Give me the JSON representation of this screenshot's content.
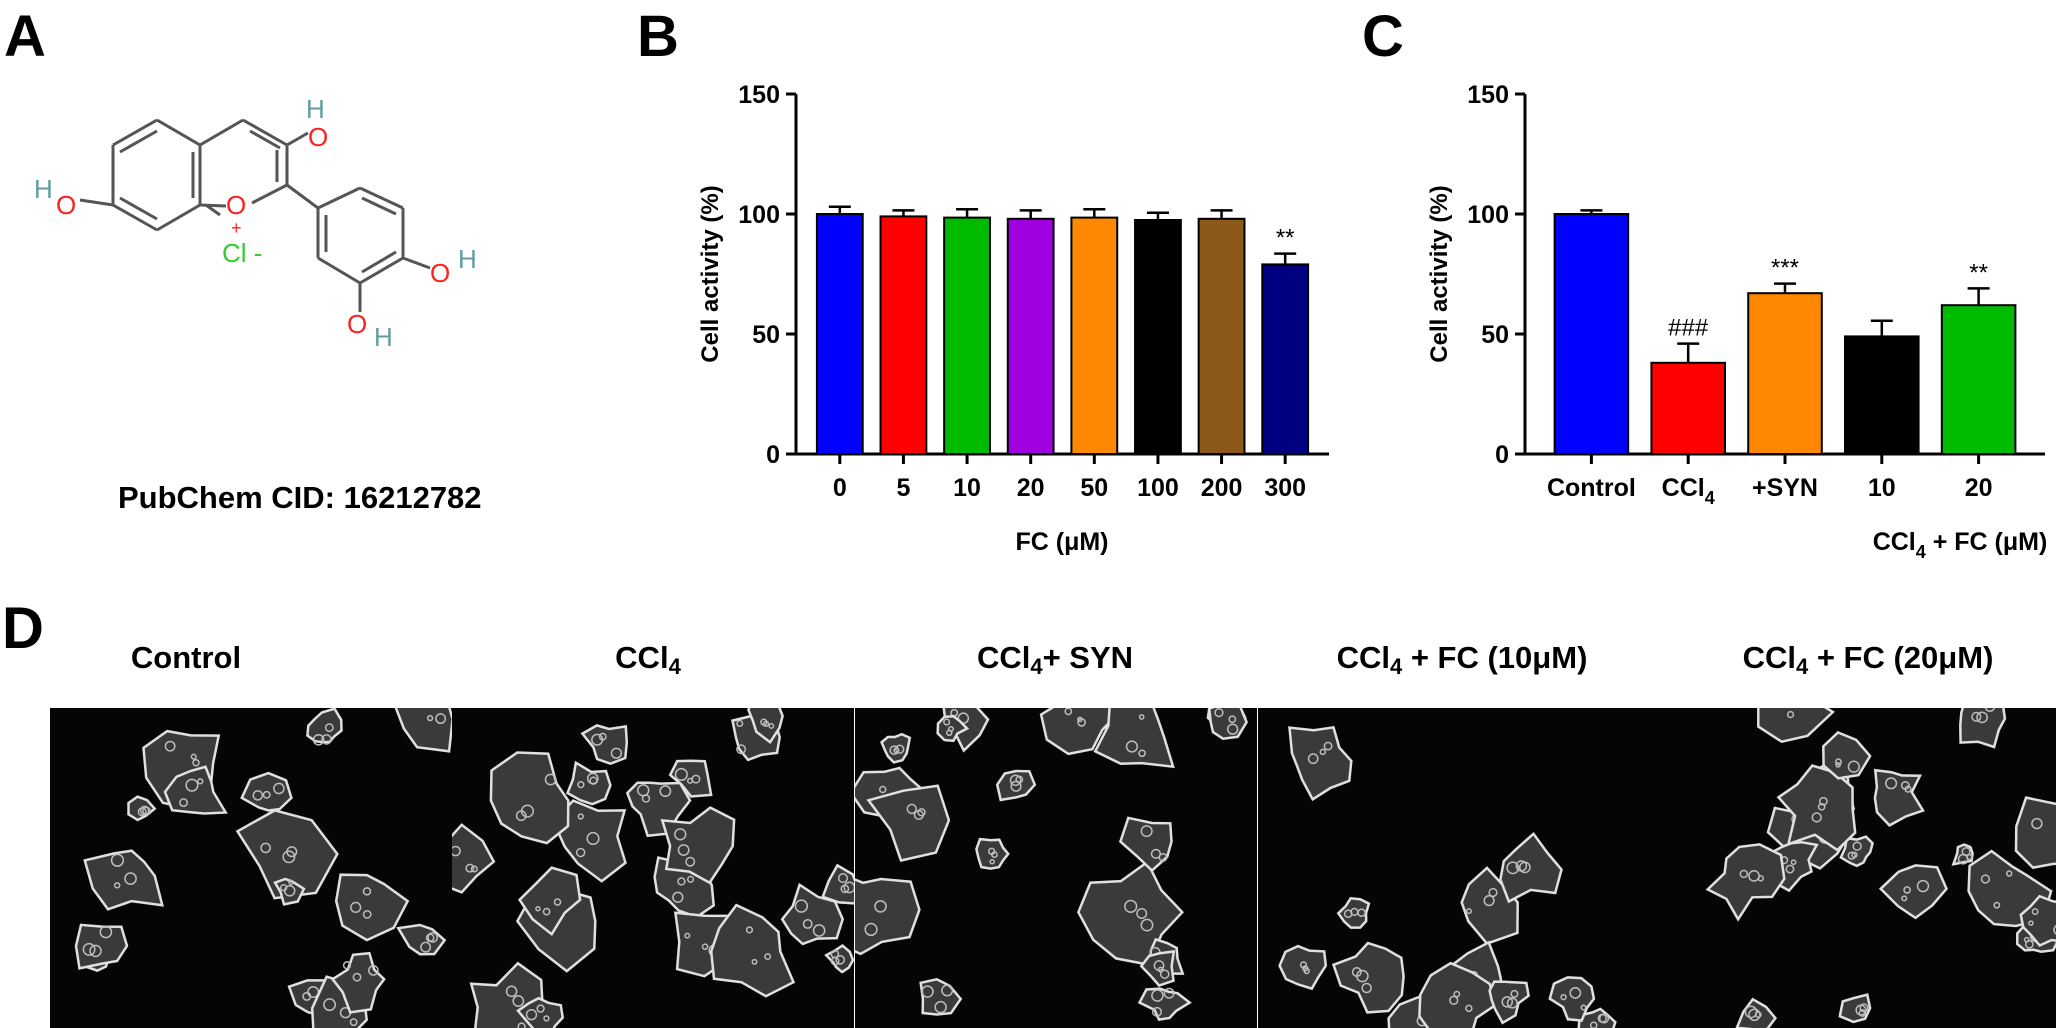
{
  "panels": {
    "a": "A",
    "b": "B",
    "c": "C",
    "d": "D"
  },
  "molecule": {
    "cid_label": "PubChem CID: 16212782",
    "atoms": {
      "o": "O",
      "h": "H",
      "cl": "Cl -",
      "plus": "+"
    },
    "colors": {
      "oxygen": "#ff2020",
      "hydrogen": "#5f9ea0",
      "chlorine": "#32cd32",
      "bond": "#555555"
    }
  },
  "panel_d": {
    "titles": [
      {
        "main": "Control",
        "sub": "",
        "rest": ""
      },
      {
        "main": "CCl",
        "sub": "4",
        "rest": ""
      },
      {
        "main": "CCl",
        "sub": "4",
        "rest": "+ SYN"
      },
      {
        "main": "CCl",
        "sub": "4",
        "rest": " + FC (10μM)"
      },
      {
        "main": "CCl",
        "sub": "4",
        "rest": " + FC (20μM)"
      }
    ]
  },
  "chart_data": [
    {
      "type": "bar",
      "panel": "B",
      "ylabel": "Cell activity (%)",
      "xlabel": "FC (μM)",
      "ylim": [
        0,
        150
      ],
      "yticks": [
        0,
        50,
        100,
        150
      ],
      "categories": [
        "0",
        "5",
        "10",
        "20",
        "50",
        "100",
        "200",
        "300"
      ],
      "values": [
        100,
        99,
        98.5,
        98,
        98.5,
        97.5,
        98,
        79
      ],
      "errors": [
        3,
        2.5,
        3.5,
        3.5,
        3.5,
        3,
        3.5,
        4.5
      ],
      "colors": [
        "#0000ff",
        "#ff0000",
        "#00bb00",
        "#a000e0",
        "#ff8800",
        "#000000",
        "#8b5a1b",
        "#000080"
      ],
      "annotations": [
        "",
        "",
        "",
        "",
        "",
        "",
        "",
        "**"
      ]
    },
    {
      "type": "bar",
      "panel": "C",
      "ylabel": "Cell activity (%)",
      "xlabel_main": "CCl",
      "xlabel_sub": "4",
      "xlabel_rest": " + FC (μM)",
      "ylim": [
        0,
        150
      ],
      "yticks": [
        0,
        50,
        100,
        150
      ],
      "categories": [
        {
          "main": "Control",
          "sub": ""
        },
        {
          "main": "CCl",
          "sub": "4"
        },
        {
          "main": "+SYN",
          "sub": ""
        },
        {
          "main": "10",
          "sub": ""
        },
        {
          "main": "20",
          "sub": ""
        }
      ],
      "values": [
        100,
        38,
        67,
        49,
        62
      ],
      "errors": [
        1.5,
        8,
        4,
        6.5,
        7
      ],
      "colors": [
        "#0000ff",
        "#ff0000",
        "#ff8800",
        "#000000",
        "#00bb00"
      ],
      "annotations": [
        "",
        "###",
        "***",
        "",
        "**"
      ]
    }
  ]
}
